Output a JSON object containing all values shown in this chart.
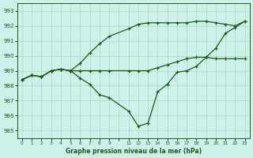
{
  "title": "Graphe pression niveau de la mer (hPa)",
  "bg_color": "#cdf0e8",
  "grid_color": "#b0d8c8",
  "line_color": "#1a5c1a",
  "hours_main": [
    0,
    1,
    2,
    3,
    4,
    5,
    6,
    7,
    8,
    9,
    11,
    12,
    13,
    14,
    15,
    16,
    17,
    18,
    19,
    20,
    21,
    22,
    23
  ],
  "pressure_main": [
    988.4,
    988.7,
    988.6,
    989.0,
    989.1,
    989.0,
    988.5,
    988.1,
    987.4,
    987.2,
    986.3,
    985.3,
    985.5,
    987.6,
    988.1,
    988.9,
    989.0,
    989.3,
    989.9,
    990.5,
    991.5,
    991.9,
    992.3
  ],
  "hours_upper": [
    0,
    1,
    2,
    3,
    4,
    5,
    6,
    7,
    8,
    9,
    11,
    12,
    13,
    14,
    15,
    16,
    17,
    18,
    19,
    20,
    21,
    22,
    23
  ],
  "pressure_upper": [
    988.4,
    988.7,
    988.6,
    989.0,
    989.1,
    989.0,
    989.5,
    990.2,
    990.8,
    991.3,
    991.8,
    992.1,
    992.2,
    992.2,
    992.2,
    992.2,
    992.2,
    992.3,
    992.3,
    992.2,
    992.1,
    992.0,
    992.3
  ],
  "hours_lower": [
    0,
    1,
    2,
    3,
    4,
    5,
    6,
    7,
    8,
    9,
    11,
    12,
    13,
    14,
    15,
    16,
    17,
    18,
    19,
    20,
    21,
    22,
    23
  ],
  "pressure_lower": [
    988.4,
    988.7,
    988.6,
    989.0,
    989.1,
    989.0,
    989.0,
    989.0,
    989.0,
    989.0,
    989.0,
    989.0,
    989.0,
    989.2,
    989.4,
    989.6,
    989.8,
    989.9,
    989.9,
    989.8,
    989.8,
    989.8,
    989.8
  ],
  "x_labels": [
    "0",
    "1",
    "2",
    "3",
    "4",
    "5",
    "6",
    "7",
    "8",
    "9",
    "",
    "11",
    "12",
    "13",
    "14",
    "15",
    "16",
    "17",
    "18",
    "19",
    "20",
    "21",
    "22",
    "23"
  ],
  "ylim": [
    984.5,
    993.5
  ],
  "yticks": [
    985,
    986,
    987,
    988,
    989,
    990,
    991,
    992,
    993
  ]
}
